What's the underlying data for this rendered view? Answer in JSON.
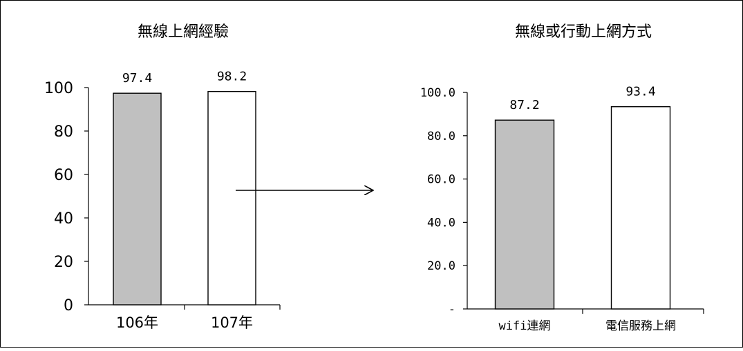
{
  "chart_data": [
    {
      "type": "bar",
      "title": "無線上網經驗",
      "categories": [
        "106年",
        "107年"
      ],
      "values": [
        97.4,
        98.2
      ],
      "value_labels": [
        "97.4",
        "98.2"
      ],
      "ylim": [
        0,
        100
      ],
      "yticks": [
        "0",
        "20",
        "40",
        "60",
        "80",
        "100"
      ],
      "bar_colors": [
        "#c0c0c0",
        "#ffffff"
      ],
      "grid": false,
      "legend": false
    },
    {
      "type": "bar",
      "title": "無線或行動上網方式",
      "categories": [
        "wifi連網",
        "電信服務上網"
      ],
      "values": [
        87.2,
        93.4
      ],
      "value_labels": [
        "87.2",
        "93.4"
      ],
      "ylim": [
        0,
        100
      ],
      "yticks": [
        "-",
        "20.0",
        "40.0",
        "60.0",
        "80.0",
        "100.0"
      ],
      "bar_colors": [
        "#c0c0c0",
        "#ffffff"
      ],
      "grid": false,
      "legend": false
    }
  ]
}
